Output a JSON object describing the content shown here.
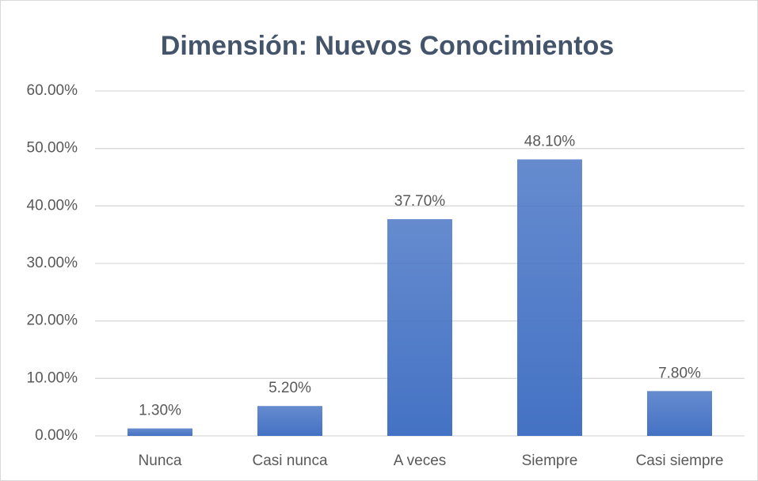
{
  "chart_data": {
    "type": "bar",
    "title": "Dimensión: Nuevos Conocimientos",
    "categories": [
      "Nunca",
      "Casi nunca",
      "A veces",
      "Siempre",
      "Casi siempre"
    ],
    "values": [
      1.3,
      5.2,
      37.7,
      48.1,
      7.8
    ],
    "value_labels": [
      "1.30%",
      "5.20%",
      "37.70%",
      "48.10%",
      "7.80%"
    ],
    "color": "#4472c4",
    "ylim": [
      0,
      60
    ],
    "yticks": [
      {
        "value": 0,
        "label": "0.00%"
      },
      {
        "value": 10,
        "label": "10.00%"
      },
      {
        "value": 20,
        "label": "20.00%"
      },
      {
        "value": 30,
        "label": "30.00%"
      },
      {
        "value": 40,
        "label": "40.00%"
      },
      {
        "value": 50,
        "label": "50.00%"
      },
      {
        "value": 60,
        "label": "60.00%"
      }
    ],
    "grid": true
  }
}
